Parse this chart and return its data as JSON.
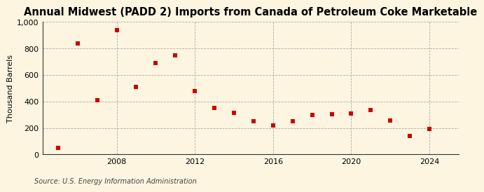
{
  "title": "Annual Midwest (PADD 2) Imports from Canada of Petroleum Coke Marketable",
  "ylabel": "Thousand Barrels",
  "source": "Source: U.S. Energy Information Administration",
  "years": [
    2005,
    2006,
    2007,
    2008,
    2009,
    2010,
    2011,
    2012,
    2013,
    2014,
    2015,
    2016,
    2017,
    2018,
    2019,
    2020,
    2021,
    2022,
    2023,
    2024
  ],
  "values": [
    50,
    835,
    410,
    940,
    510,
    690,
    750,
    480,
    350,
    315,
    250,
    220,
    250,
    300,
    305,
    310,
    335,
    255,
    140,
    190
  ],
  "marker_color": "#cc0000",
  "marker_size": 5,
  "background_color": "#fdf5e0",
  "grid_color": "#aaaaaa",
  "ylim": [
    0,
    1000
  ],
  "yticks": [
    0,
    200,
    400,
    600,
    800,
    1000
  ],
  "ytick_labels": [
    "0",
    "200",
    "400",
    "600",
    "800",
    "1,000"
  ],
  "xlim_left": 2004.2,
  "xlim_right": 2025.5,
  "xticks": [
    2008,
    2012,
    2016,
    2020,
    2024
  ],
  "title_fontsize": 10.5,
  "label_fontsize": 8,
  "tick_fontsize": 8,
  "source_fontsize": 7
}
